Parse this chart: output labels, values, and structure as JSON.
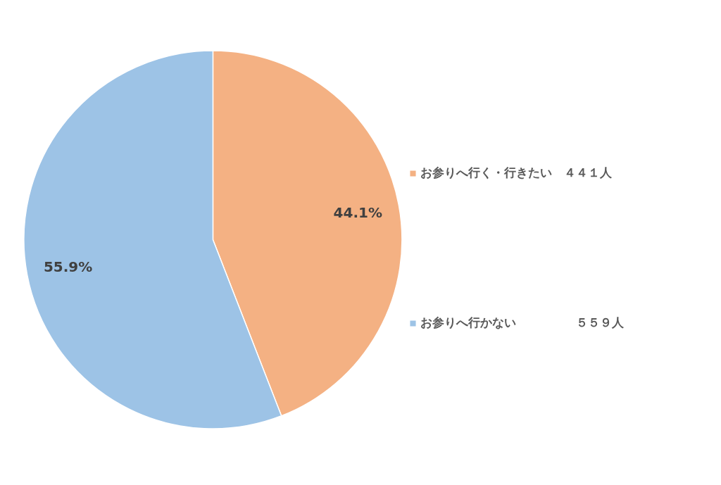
{
  "chart_data": {
    "type": "pie",
    "categories": [
      "お参りへ行く・行きたい　４４１人",
      "お参りへ行かない　　　　　５５９人"
    ],
    "values": [
      44.1,
      55.9
    ],
    "colors": [
      "#f4b183",
      "#9dc3e6"
    ],
    "value_labels": [
      "44.1%",
      "55.9%"
    ],
    "legend": "right"
  }
}
